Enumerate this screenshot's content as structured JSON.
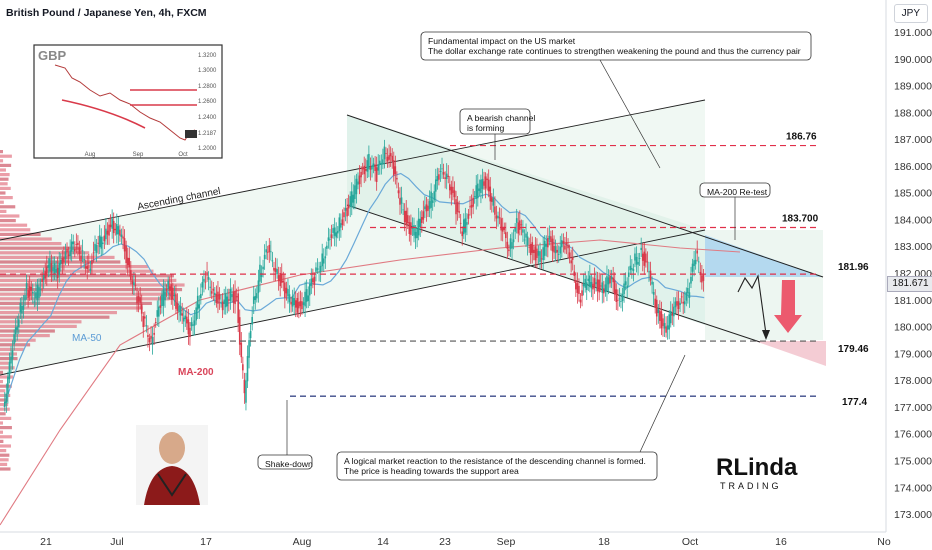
{
  "header": {
    "symbol_title": "British Pound / Japanese Yen, 4h, FXCM",
    "currency": "JPY",
    "last_price": "181.671"
  },
  "chart_data": {
    "type": "candlestick",
    "symbol": "GBPJPY",
    "timeframe": "4h",
    "ylim": [
      172.8,
      191.6
    ],
    "y_ticks": [
      "191.000",
      "190.000",
      "189.000",
      "188.000",
      "187.000",
      "186.000",
      "185.000",
      "184.000",
      "183.000",
      "182.000",
      "181.000",
      "180.000",
      "179.000",
      "178.000",
      "177.000",
      "176.000",
      "175.000",
      "174.000",
      "173.000"
    ],
    "x_ticks": [
      "21",
      "Jul",
      "17",
      "Aug",
      "14",
      "23",
      "Sep",
      "18",
      "Oct",
      "16",
      "No"
    ],
    "price_path": [
      [
        0,
        177.0
      ],
      [
        1,
        178.8
      ],
      [
        2,
        180.5
      ],
      [
        3,
        181.4
      ],
      [
        4,
        181.0
      ],
      [
        5,
        181.8
      ],
      [
        6,
        182.3
      ],
      [
        7,
        182.0
      ],
      [
        8,
        182.8
      ],
      [
        9,
        183.0
      ],
      [
        10,
        182.7
      ],
      [
        11,
        182.2
      ],
      [
        12,
        183.0
      ],
      [
        13,
        183.4
      ],
      [
        14,
        183.8
      ],
      [
        15,
        183.5
      ],
      [
        16,
        182.4
      ],
      [
        17,
        181.3
      ],
      [
        18,
        180.2
      ],
      [
        19,
        179.5
      ],
      [
        20,
        180.6
      ],
      [
        21,
        181.6
      ],
      [
        22,
        181.0
      ],
      [
        23,
        180.4
      ],
      [
        24,
        179.8
      ],
      [
        25,
        180.9
      ],
      [
        26,
        181.8
      ],
      [
        27,
        181.4
      ],
      [
        28,
        180.7
      ],
      [
        29,
        181.2
      ],
      [
        30,
        181.0
      ],
      [
        31,
        177.4
      ],
      [
        32,
        180.6
      ],
      [
        33,
        182.1
      ],
      [
        34,
        182.8
      ],
      [
        35,
        182.2
      ],
      [
        36,
        181.4
      ],
      [
        37,
        181.0
      ],
      [
        38,
        180.7
      ],
      [
        39,
        181.2
      ],
      [
        40,
        181.8
      ],
      [
        41,
        182.6
      ],
      [
        42,
        183.2
      ],
      [
        43,
        183.8
      ],
      [
        44,
        184.2
      ],
      [
        45,
        185.0
      ],
      [
        46,
        185.7
      ],
      [
        47,
        186.2
      ],
      [
        48,
        185.6
      ],
      [
        49,
        186.7
      ],
      [
        50,
        186.0
      ],
      [
        51,
        184.8
      ],
      [
        52,
        183.7
      ],
      [
        53,
        183.5
      ],
      [
        54,
        184.2
      ],
      [
        55,
        184.8
      ],
      [
        56,
        185.6
      ],
      [
        57,
        185.8
      ],
      [
        58,
        184.6
      ],
      [
        59,
        183.6
      ],
      [
        60,
        184.4
      ],
      [
        61,
        185.2
      ],
      [
        62,
        185.4
      ],
      [
        63,
        184.6
      ],
      [
        64,
        183.6
      ],
      [
        65,
        183.0
      ],
      [
        66,
        183.8
      ],
      [
        67,
        183.4
      ],
      [
        68,
        182.8
      ],
      [
        69,
        182.6
      ],
      [
        70,
        183.2
      ],
      [
        71,
        182.9
      ],
      [
        72,
        183.0
      ],
      [
        73,
        182.6
      ],
      [
        74,
        181.0
      ],
      [
        75,
        181.7
      ],
      [
        76,
        181.6
      ],
      [
        77,
        181.4
      ],
      [
        78,
        181.8
      ],
      [
        79,
        181.0
      ],
      [
        80,
        181.5
      ],
      [
        81,
        182.4
      ],
      [
        82,
        182.8
      ],
      [
        83,
        182.0
      ],
      [
        84,
        180.6
      ],
      [
        85,
        179.9
      ],
      [
        86,
        180.5
      ],
      [
        87,
        181.0
      ],
      [
        88,
        181.2
      ],
      [
        89,
        182.7
      ],
      [
        90,
        181.671
      ]
    ],
    "series": [
      {
        "name": "MA-50",
        "color": "#5b9bd5"
      },
      {
        "name": "MA-200",
        "color": "#e05a6e"
      }
    ],
    "levels": [
      {
        "label": "186.76",
        "value": 186.76,
        "color": "#e0304a",
        "style": "dashed"
      },
      {
        "label": "183.700",
        "value": 183.7,
        "color": "#e0304a",
        "style": "dashed"
      },
      {
        "label": "181.96",
        "value": 181.96,
        "color": "#e0304a",
        "style": "dashed"
      },
      {
        "label": "179.46",
        "value": 179.46,
        "color": "#555",
        "style": "dashed"
      },
      {
        "label": "177.4",
        "value": 177.4,
        "color": "#3d4b8a",
        "style": "dashed"
      }
    ],
    "channels": [
      {
        "name": "Ascending channel",
        "color": "#222"
      },
      {
        "name": "Bearish channel",
        "color": "#222"
      }
    ],
    "annotations": [
      "A bearish channel\nis forming",
      "Fundamental impact on the US market\nThe dollar exchange rate continues to strengthen weakening the pound and thus the currency pair",
      "MA-200 Re-test",
      "A logical market reaction to the resistance of the descending channel is formed.\nThe price is heading towards the support area",
      "Shake-down",
      "Ascending channel"
    ]
  },
  "inset": {
    "label": "GBP",
    "y_ticks": [
      "1.3200",
      "1.3000",
      "1.2800",
      "1.2600",
      "1.2400",
      "1.2187",
      "1.2000"
    ],
    "x_ticks": [
      "Aug",
      "Sep",
      "Oct"
    ]
  },
  "labels": {
    "ma50": "MA-50",
    "ma200": "MA-200",
    "ascending": "Ascending channel",
    "bearish_note": "A bearish channel\nis forming",
    "fundamental": "Fundamental impact on the US market\nThe dollar exchange rate continues to strengthen weakening the pound and thus the currency pair",
    "retest": "MA-200 Re-test",
    "reaction": "A logical market reaction to the resistance of the descending channel is formed.\nThe price is heading towards the support area",
    "shake": "Shake-down"
  },
  "logo": {
    "text": "RLinda",
    "sub": "TRADING"
  }
}
